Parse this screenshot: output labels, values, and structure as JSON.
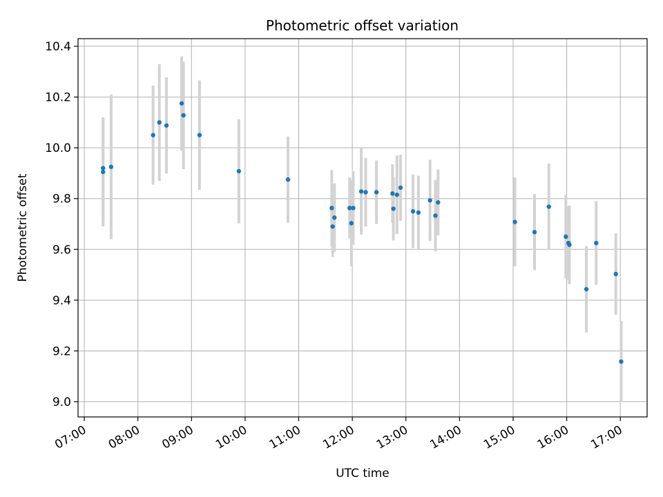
{
  "chart_data": {
    "type": "scatter",
    "title": "Photometric offset variation",
    "xlabel": "UTC time",
    "ylabel": "Photometric offset",
    "x_is_time": true,
    "xlim": [
      "06:53",
      "17:30"
    ],
    "ylim": [
      8.94,
      10.43
    ],
    "x_ticks": [
      "07:00",
      "08:00",
      "09:00",
      "10:00",
      "11:00",
      "12:00",
      "13:00",
      "14:00",
      "15:00",
      "16:00",
      "17:00"
    ],
    "y_ticks": [
      9.0,
      9.2,
      9.4,
      9.6,
      9.8,
      10.0,
      10.2,
      10.4
    ],
    "y_tick_labels": [
      "9.0",
      "9.2",
      "9.4",
      "9.6",
      "9.8",
      "10.0",
      "10.2",
      "10.4"
    ],
    "grid": true,
    "point_color": "#1f77b4",
    "errorbar_color": "#d3d3d3",
    "series": [
      {
        "points": [
          {
            "t": "07:21",
            "y": 9.905,
            "err": 0.215
          },
          {
            "t": "07:21",
            "y": 9.92,
            "err": 0.2
          },
          {
            "t": "07:30",
            "y": 9.925,
            "err": 0.285
          },
          {
            "t": "08:17",
            "y": 10.05,
            "err": 0.195
          },
          {
            "t": "08:24",
            "y": 10.1,
            "err": 0.23
          },
          {
            "t": "08:32",
            "y": 10.088,
            "err": 0.19
          },
          {
            "t": "08:49",
            "y": 10.175,
            "err": 0.185
          },
          {
            "t": "08:51",
            "y": 10.128,
            "err": 0.212
          },
          {
            "t": "09:09",
            "y": 10.05,
            "err": 0.215
          },
          {
            "t": "09:53",
            "y": 9.908,
            "err": 0.205
          },
          {
            "t": "10:48",
            "y": 9.875,
            "err": 0.17
          },
          {
            "t": "11:37",
            "y": 9.763,
            "err": 0.15
          },
          {
            "t": "11:38",
            "y": 9.69,
            "err": 0.12
          },
          {
            "t": "11:40",
            "y": 9.725,
            "err": 0.135
          },
          {
            "t": "11:57",
            "y": 9.763,
            "err": 0.12
          },
          {
            "t": "11:59",
            "y": 9.703,
            "err": 0.17
          },
          {
            "t": "12:01",
            "y": 9.763,
            "err": 0.145
          },
          {
            "t": "12:10",
            "y": 9.828,
            "err": 0.17
          },
          {
            "t": "12:15",
            "y": 9.825,
            "err": 0.135
          },
          {
            "t": "12:27",
            "y": 9.825,
            "err": 0.125
          },
          {
            "t": "12:45",
            "y": 9.82,
            "err": 0.115
          },
          {
            "t": "12:46",
            "y": 9.76,
            "err": 0.125
          },
          {
            "t": "12:50",
            "y": 9.815,
            "err": 0.155
          },
          {
            "t": "12:54",
            "y": 9.843,
            "err": 0.13
          },
          {
            "t": "13:08",
            "y": 9.75,
            "err": 0.145
          },
          {
            "t": "13:14",
            "y": 9.745,
            "err": 0.145
          },
          {
            "t": "13:27",
            "y": 9.793,
            "err": 0.16
          },
          {
            "t": "13:33",
            "y": 9.733,
            "err": 0.14
          },
          {
            "t": "13:36",
            "y": 9.785,
            "err": 0.13
          },
          {
            "t": "15:02",
            "y": 9.708,
            "err": 0.175
          },
          {
            "t": "15:24",
            "y": 9.668,
            "err": 0.15
          },
          {
            "t": "15:40",
            "y": 9.768,
            "err": 0.17
          },
          {
            "t": "15:59",
            "y": 9.65,
            "err": 0.165
          },
          {
            "t": "16:02",
            "y": 9.625,
            "err": 0.145
          },
          {
            "t": "16:03",
            "y": 9.618,
            "err": 0.155
          },
          {
            "t": "16:22",
            "y": 9.443,
            "err": 0.17
          },
          {
            "t": "16:33",
            "y": 9.625,
            "err": 0.165
          },
          {
            "t": "16:55",
            "y": 9.503,
            "err": 0.16
          },
          {
            "t": "17:01",
            "y": 9.158,
            "err": 0.16
          }
        ]
      }
    ]
  }
}
